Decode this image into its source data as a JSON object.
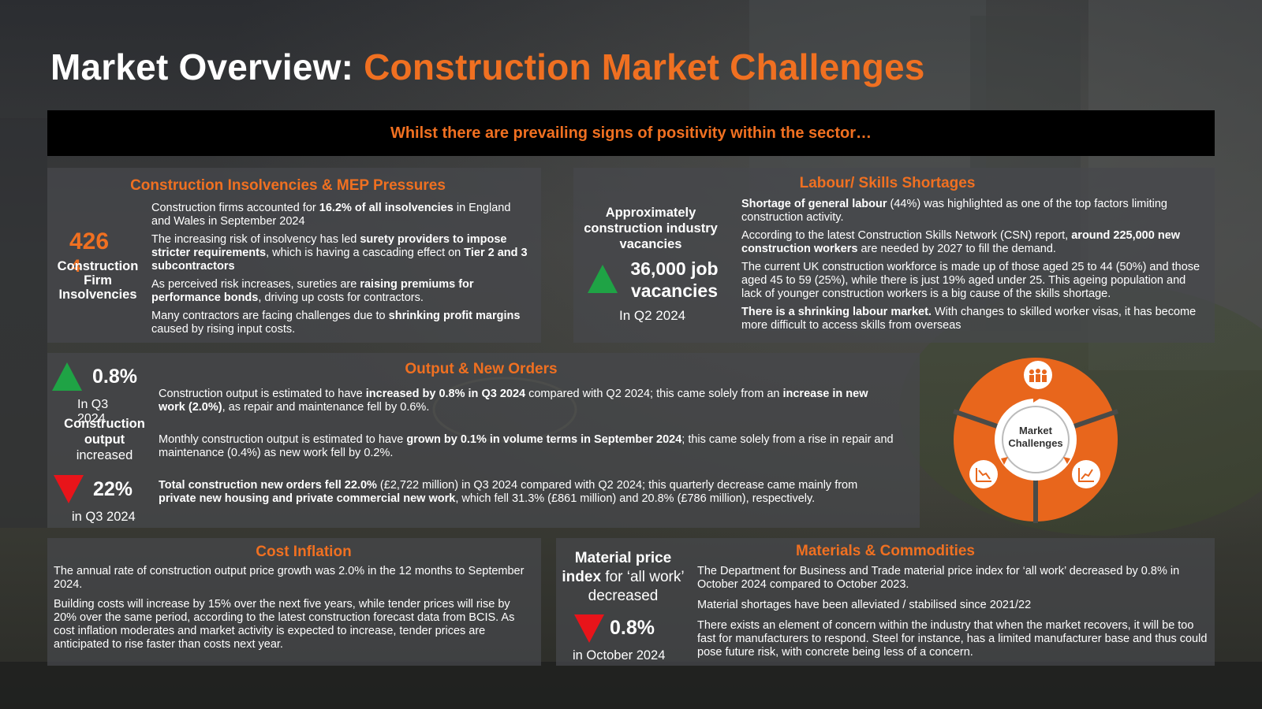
{
  "title": {
    "prefix": "Market Overview: ",
    "accent": "Construction Market Challenges"
  },
  "banner": "Whilst there are prevailing signs of positivity within the sector…",
  "insolvencies": {
    "title": "Construction Insolvencies & MEP Pressures",
    "stat_value": "426",
    "stat_suffix": "4",
    "stat_label": "Construction Firm Insolvencies",
    "p1": {
      "a": "Construction firms accounted for ",
      "b": "16.2% of all insolvencies",
      "c": " in England and Wales in September 2024"
    },
    "p2": {
      "a": "The increasing risk of insolvency has led ",
      "b": "surety providers to impose stricter requirements",
      "c": ", which is having a cascading effect on ",
      "d": "Tier 2 and 3 subcontractors"
    },
    "p3": {
      "a": "As perceived risk increases, sureties are ",
      "b": "raising premiums for performance bonds",
      "c": ", driving up costs for contractors."
    },
    "p4": {
      "a": "Many contractors are facing challenges due to ",
      "b": "shrinking profit margins",
      "c": " caused by rising input costs."
    }
  },
  "labour": {
    "title": "Labour/ Skills Shortages",
    "lead_label": "Approximately construction industry vacancies",
    "stat_value": "36,000 job vacancies",
    "stat_period": "In Q2 2024",
    "p1": {
      "b": "Shortage of general labour",
      "c": " (44%) was highlighted as one of the top factors limiting construction activity."
    },
    "p2": {
      "a": "According to the latest Construction Skills Network (CSN) report, ",
      "b": "around 225,000 new construction workers",
      "c": " are needed by 2027 to fill the demand."
    },
    "p3": "The current UK construction workforce is made up of those aged 25 to 44 (50%) and those aged 45 to 59 (25%), while there is just 19% aged under 25. This ageing population and lack of younger construction workers is a big cause of the skills shortage.",
    "p4": {
      "b": "There is a shrinking labour market.",
      "c": " With changes to skilled worker visas, it has become more difficult to access skills from overseas"
    }
  },
  "output": {
    "title": "Output & New Orders",
    "stat1_value": "0.8%",
    "stat1_period": "In Q3 2024",
    "stat1_label": "Construction output",
    "stat1_suffix": "increased",
    "stat2_value": "22%",
    "stat2_period": "in Q3 2024",
    "p1": {
      "a": "Construction output is estimated to have ",
      "b": "increased by 0.8% in Q3 2024",
      "c": " compared with Q2 2024; this came solely from an ",
      "d": "increase in new work (2.0%)",
      "e": ", as repair and maintenance fell by 0.6%."
    },
    "p2": {
      "a": "Monthly construction output is estimated to have ",
      "b": "grown by 0.1% in volume terms in September 2024",
      "c": "; this came solely from a rise in repair and maintenance (0.4%) as new work fell by 0.2%."
    },
    "p3": {
      "b": "Total construction new orders fell 22.0%",
      "c": " (£2,722 million) in Q3 2024 compared with Q2 2024; this quarterly decrease came mainly from ",
      "d": "private new housing and private commercial new work",
      "e": ", which fell 31.3% (£861 million) and 20.8% (£786 million), respectively."
    }
  },
  "cycle": {
    "label_line1": "Market",
    "label_line2": "Challenges",
    "color": "#e8661c"
  },
  "cost": {
    "title": "Cost Inflation",
    "p1": "The annual rate of construction output price growth was 2.0% in the 12 months to September 2024.",
    "p2": "Building costs will increase by 15% over the next five years, while tender prices will rise by 20% over the same period, according to the latest construction forecast data from BCIS. As cost inflation moderates and market activity is expected to increase, tender prices are anticipated to rise faster than costs next year."
  },
  "materials": {
    "title": "Materials & Commodities",
    "lead_bold": "Material price index",
    "lead_rest": " for ‘all work’ decreased",
    "stat_value": "0.8%",
    "stat_period": "in October 2024",
    "p1": "The Department for Business and Trade material price index for ‘all work’ decreased by 0.8% in October 2024 compared to October 2023.",
    "p2": "Material shortages have been alleviated / stabilised since 2021/22",
    "p3": "There exists an element of concern within the industry that when the market recovers, it will be too fast for manufacturers to respond. Steel for instance, has a limited manufacturer base and thus could pose future risk, with concrete being less of a concern."
  },
  "colors": {
    "accent": "#f07021",
    "up": "#1fa345",
    "down": "#e8141a",
    "banner_bg": "#000000"
  }
}
